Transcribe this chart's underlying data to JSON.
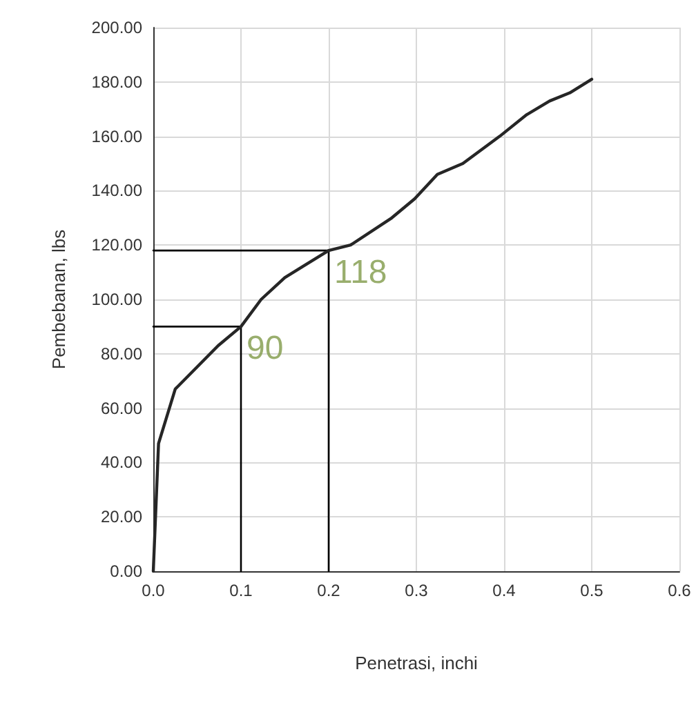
{
  "chart_data": {
    "type": "line",
    "xlabel": "Penetrasi, inchi",
    "ylabel": "Pembebanan, lbs",
    "series": [
      {
        "color": "#262626",
        "x": [
          0,
          0.006,
          0.025,
          0.074,
          0.1,
          0.123,
          0.15,
          0.17,
          0.2,
          0.225,
          0.272,
          0.298,
          0.324,
          0.353,
          0.395,
          0.426,
          0.452,
          0.475,
          0.5
        ],
        "values": [
          0,
          47,
          67,
          83,
          90,
          100,
          108,
          112,
          118,
          120,
          130,
          137,
          146,
          150,
          160,
          168,
          173,
          176,
          181
        ]
      },
      {
        "type": "line",
        "color": "#000000",
        "x": [
          0,
          0.1,
          0.1
        ],
        "values": [
          90,
          90,
          0
        ]
      },
      {
        "type": "line",
        "color": "#000000",
        "x": [
          0,
          0.2,
          0.2
        ],
        "values": [
          118,
          118,
          0
        ]
      }
    ],
    "annotations": [
      {
        "text": "90",
        "x": 0.1,
        "y": 90
      },
      {
        "text": "118",
        "x": 0.2,
        "y": 118
      }
    ],
    "xlim": [
      0,
      0.6
    ],
    "xticks": [
      {
        "value": 0,
        "label": "0.0"
      },
      {
        "value": 0.1,
        "label": "0.1"
      },
      {
        "value": 0.2,
        "label": "0.2"
      },
      {
        "value": 0.3,
        "label": "0.3"
      },
      {
        "value": 0.4,
        "label": "0.4"
      },
      {
        "value": 0.5,
        "label": "0.5"
      },
      {
        "value": 0.6,
        "label": "0.6"
      }
    ],
    "ylim": [
      0,
      200
    ],
    "yticks": [
      {
        "value": 0,
        "label": "0.00"
      },
      {
        "value": 20,
        "label": "20.00"
      },
      {
        "value": 40,
        "label": "40.00"
      },
      {
        "value": 60,
        "label": "60.00"
      },
      {
        "value": 80,
        "label": "80.00"
      },
      {
        "value": 100,
        "label": "100.00"
      },
      {
        "value": 120,
        "label": "120.00"
      },
      {
        "value": 140,
        "label": "140.00"
      },
      {
        "value": 160,
        "label": "160.00"
      },
      {
        "value": 180,
        "label": "180.00"
      },
      {
        "value": 200,
        "label": "200.00"
      }
    ],
    "grid": true,
    "marker": "none",
    "line_style": "solid"
  }
}
